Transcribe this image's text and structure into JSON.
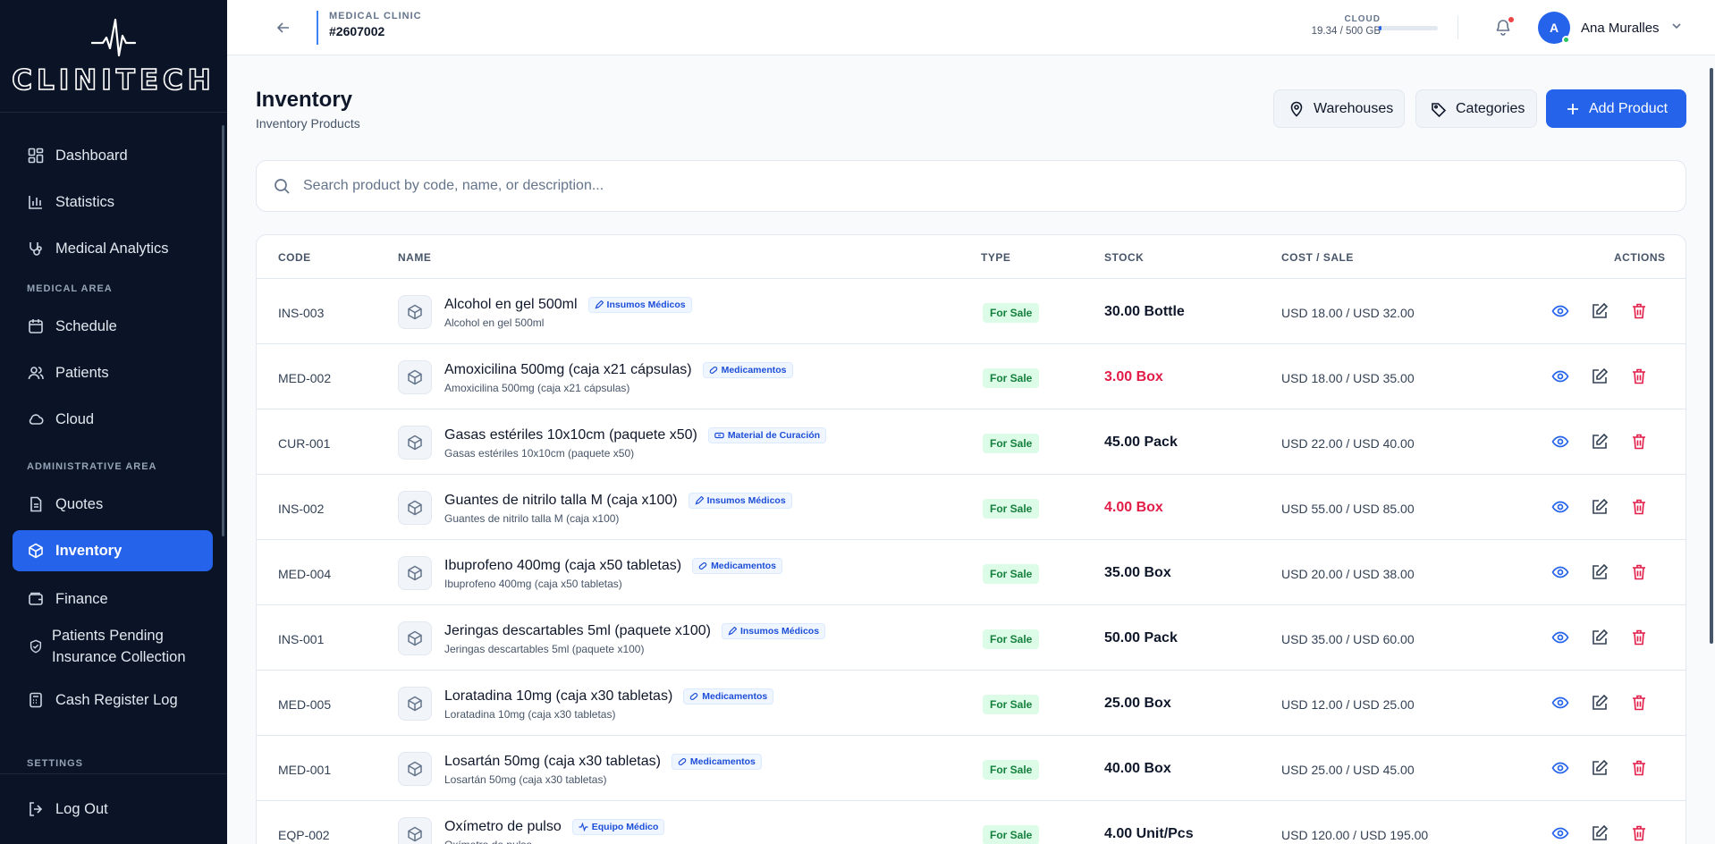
{
  "brand": {
    "name": "CLINITECH"
  },
  "sidebar": {
    "items_top": [
      {
        "label": "Dashboard",
        "icon": "dashboard-icon"
      },
      {
        "label": "Statistics",
        "icon": "bar-chart-icon"
      },
      {
        "label": "Medical Analytics",
        "icon": "stethoscope-icon"
      }
    ],
    "section_medical": "MEDICAL AREA",
    "items_medical": [
      {
        "label": "Schedule",
        "icon": "calendar-icon"
      },
      {
        "label": "Patients",
        "icon": "users-icon"
      },
      {
        "label": "Cloud",
        "icon": "cloud-icon"
      }
    ],
    "section_admin": "ADMINISTRATIVE AREA",
    "items_admin": [
      {
        "label": "Quotes",
        "icon": "document-icon"
      },
      {
        "label": "Inventory",
        "icon": "box-icon",
        "active": true
      },
      {
        "label": "Finance",
        "icon": "wallet-icon"
      },
      {
        "label": "Patients Pending Insurance Collection",
        "icon": "shield-check-icon"
      },
      {
        "label": "Cash Register Log",
        "icon": "calculator-icon"
      }
    ],
    "section_settings": "SETTINGS",
    "logout": "Log Out"
  },
  "topbar": {
    "clinic_label": "MEDICAL CLINIC",
    "clinic_id": "#2607002",
    "cloud_label": "CLOUD",
    "cloud_usage": "19.34 / 500 GB",
    "cloud_fraction": 0.039,
    "user_initial": "A",
    "user_name": "Ana Muralles"
  },
  "page": {
    "title": "Inventory",
    "subtitle": "Inventory Products",
    "btn_warehouses": "Warehouses",
    "btn_categories": "Categories",
    "btn_add": "Add Product",
    "search_placeholder": "Search product by code, name, or description..."
  },
  "table": {
    "headers": {
      "code": "CODE",
      "name": "NAME",
      "type": "TYPE",
      "stock": "STOCK",
      "cost": "COST / SALE",
      "actions": "ACTIONS"
    },
    "rows": [
      {
        "code": "INS-003",
        "name": "Alcohol en gel 500ml",
        "desc": "Alcohol en gel 500ml",
        "category": "Insumos Médicos",
        "cat_icon": "pencil-icon",
        "type": "For Sale",
        "stock": "30.00 Bottle",
        "low": false,
        "cost": "USD 18.00 / USD 32.00"
      },
      {
        "code": "MED-002",
        "name": "Amoxicilina 500mg (caja x21 cápsulas)",
        "desc": "Amoxicilina 500mg (caja x21 cápsulas)",
        "category": "Medicamentos",
        "cat_icon": "pill-icon",
        "type": "For Sale",
        "stock": "3.00 Box",
        "low": true,
        "cost": "USD 18.00 / USD 35.00"
      },
      {
        "code": "CUR-001",
        "name": "Gasas estériles 10x10cm (paquete x50)",
        "desc": "Gasas estériles 10x10cm (paquete x50)",
        "category": "Material de Curación",
        "cat_icon": "bandage-icon",
        "type": "For Sale",
        "stock": "45.00 Pack",
        "low": false,
        "cost": "USD 22.00 / USD 40.00"
      },
      {
        "code": "INS-002",
        "name": "Guantes de nitrilo talla M (caja x100)",
        "desc": "Guantes de nitrilo talla M (caja x100)",
        "category": "Insumos Médicos",
        "cat_icon": "pencil-icon",
        "type": "For Sale",
        "stock": "4.00 Box",
        "low": true,
        "cost": "USD 55.00 / USD 85.00"
      },
      {
        "code": "MED-004",
        "name": "Ibuprofeno 400mg (caja x50 tabletas)",
        "desc": "Ibuprofeno 400mg (caja x50 tabletas)",
        "category": "Medicamentos",
        "cat_icon": "pill-icon",
        "type": "For Sale",
        "stock": "35.00 Box",
        "low": false,
        "cost": "USD 20.00 / USD 38.00"
      },
      {
        "code": "INS-001",
        "name": "Jeringas descartables 5ml (paquete x100)",
        "desc": "Jeringas descartables 5ml (paquete x100)",
        "category": "Insumos Médicos",
        "cat_icon": "pencil-icon",
        "type": "For Sale",
        "stock": "50.00 Pack",
        "low": false,
        "cost": "USD 35.00 / USD 60.00"
      },
      {
        "code": "MED-005",
        "name": "Loratadina 10mg (caja x30 tabletas)",
        "desc": "Loratadina 10mg (caja x30 tabletas)",
        "category": "Medicamentos",
        "cat_icon": "pill-icon",
        "type": "For Sale",
        "stock": "25.00 Box",
        "low": false,
        "cost": "USD 12.00 / USD 25.00"
      },
      {
        "code": "MED-001",
        "name": "Losartán 50mg (caja x30 tabletas)",
        "desc": "Losartán 50mg (caja x30 tabletas)",
        "category": "Medicamentos",
        "cat_icon": "pill-icon",
        "type": "For Sale",
        "stock": "40.00 Box",
        "low": false,
        "cost": "USD 25.00 / USD 45.00"
      },
      {
        "code": "EQP-002",
        "name": "Oxímetro de pulso",
        "desc": "Oxímetro de pulso",
        "category": "Equipo Médico",
        "cat_icon": "pulse-icon",
        "type": "For Sale",
        "stock": "4.00 Unit/Pcs",
        "low": false,
        "cost": "USD 120.00 / USD 195.00"
      }
    ]
  },
  "colors": {
    "accent": "#2563eb",
    "sidebar_bg": "#0b1426",
    "danger": "#e11d48",
    "success_bg": "#dcfce7",
    "success_fg": "#15803d"
  }
}
